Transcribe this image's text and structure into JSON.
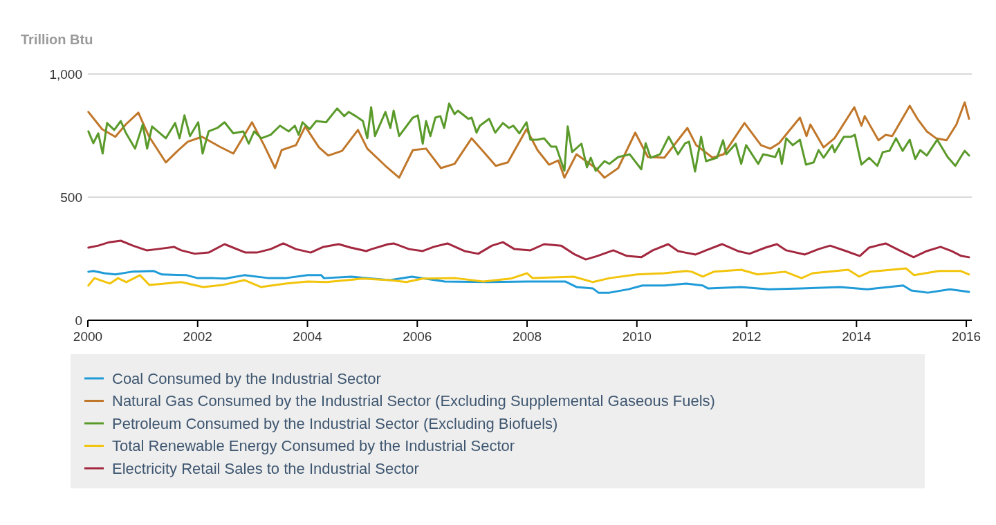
{
  "chart_data": {
    "type": "line",
    "ylabel": "Trillion Btu",
    "xlim": [
      2000,
      2016.1
    ],
    "xticks": [
      2000,
      2002,
      2004,
      2006,
      2008,
      2010,
      2012,
      2014,
      2016
    ],
    "ylim": [
      0,
      1000
    ],
    "yticks": [
      0,
      500,
      {
        "value": 1000,
        "label": "1,000"
      }
    ],
    "grid": "y",
    "legend": "bottom",
    "marker": "none",
    "line_style": "solid",
    "series": [
      {
        "name": "Coal Consumed by the Industrial Sector",
        "color": "#1f9bd7",
        "x": [
          2000.01,
          2000.1,
          2000.3,
          2000.5,
          2000.8,
          2001.2,
          2001.35,
          2001.8,
          2002,
          2002.3,
          2002.5,
          2002.85,
          2003.3,
          2003.6,
          2004,
          2004.25,
          2004.3,
          2004.8,
          2005.1,
          2005.5,
          2005.9,
          2006.5,
          2007.3,
          2008,
          2008.7,
          2008.9,
          2009.2,
          2009.3,
          2009.5,
          2009.85,
          2010.1,
          2010.5,
          2010.9,
          2011.2,
          2011.3,
          2011.9,
          2012.4,
          2013,
          2013.7,
          2014.2,
          2014.85,
          2015,
          2015.3,
          2015.7,
          2016.05
        ],
        "values": [
          197,
          200,
          191,
          186,
          197,
          200,
          186,
          183,
          171,
          171,
          169,
          183,
          171,
          171,
          183,
          183,
          171,
          177,
          171,
          163,
          177,
          157,
          155,
          157,
          157,
          135,
          129,
          112,
          112,
          126,
          141,
          141,
          149,
          141,
          129,
          135,
          126,
          129,
          135,
          126,
          141,
          121,
          112,
          126,
          115
        ]
      },
      {
        "name": "Natural Gas Consumed by the Industrial Sector (Excluding Supplemental Gaseous Fuels)",
        "color": "#c0772a",
        "x": [
          2000.01,
          2000.26,
          2000.5,
          2000.69,
          2000.92,
          2001.11,
          2001.42,
          2001.65,
          2001.82,
          2002.08,
          2002.4,
          2002.65,
          2002.99,
          2003.21,
          2003.41,
          2003.53,
          2003.79,
          2003.96,
          2004.21,
          2004.38,
          2004.63,
          2004.92,
          2005.09,
          2005.42,
          2005.67,
          2005.92,
          2006.16,
          2006.43,
          2006.68,
          2006.99,
          2007.18,
          2007.43,
          2007.65,
          2007.99,
          2008.19,
          2008.4,
          2008.57,
          2008.68,
          2008.9,
          2009.25,
          2009.41,
          2009.66,
          2009.97,
          2010.2,
          2010.5,
          2010.92,
          2011.08,
          2011.38,
          2011.58,
          2011.96,
          2012.26,
          2012.43,
          2012.59,
          2012.97,
          2013.09,
          2013.16,
          2013.4,
          2013.6,
          2013.96,
          2014.09,
          2014.15,
          2014.4,
          2014.53,
          2014.65,
          2014.97,
          2015.11,
          2015.28,
          2015.45,
          2015.64,
          2015.82,
          2015.97,
          2016.05
        ],
        "values": [
          846,
          776,
          745,
          795,
          843,
          748,
          641,
          691,
          725,
          745,
          705,
          677,
          804,
          711,
          618,
          691,
          711,
          787,
          702,
          669,
          688,
          773,
          697,
          627,
          579,
          691,
          697,
          618,
          635,
          739,
          691,
          627,
          641,
          776,
          691,
          632,
          649,
          579,
          674,
          618,
          579,
          618,
          762,
          663,
          660,
          781,
          711,
          660,
          674,
          801,
          711,
          697,
          719,
          823,
          748,
          795,
          702,
          739,
          865,
          790,
          829,
          731,
          753,
          748,
          871,
          818,
          767,
          739,
          731,
          795,
          885,
          818
        ]
      },
      {
        "name": "Petroleum Consumed by the Industrial Sector (Excluding Biofuels)",
        "color": "#5a9a2a",
        "x": [
          2000.01,
          2000.1,
          2000.19,
          2000.27,
          2000.35,
          2000.48,
          2000.6,
          2000.69,
          2000.86,
          2001,
          2001.08,
          2001.17,
          2001.42,
          2001.59,
          2001.67,
          2001.76,
          2001.86,
          2002.01,
          2002.09,
          2002.2,
          2002.36,
          2002.49,
          2002.65,
          2002.83,
          2002.93,
          2003.03,
          2003.16,
          2003.33,
          2003.5,
          2003.66,
          2003.77,
          2003.84,
          2003.91,
          2004.04,
          2004.16,
          2004.34,
          2004.54,
          2004.67,
          2004.75,
          2004.88,
          2005.01,
          2005.09,
          2005.16,
          2005.23,
          2005.42,
          2005.51,
          2005.57,
          2005.67,
          2005.92,
          2006.01,
          2006.1,
          2006.16,
          2006.24,
          2006.33,
          2006.42,
          2006.49,
          2006.58,
          2006.68,
          2006.74,
          2006.93,
          2006.99,
          2007.08,
          2007.14,
          2007.31,
          2007.42,
          2007.56,
          2007.67,
          2007.75,
          2007.86,
          2007.99,
          2008.06,
          2008.19,
          2008.31,
          2008.44,
          2008.53,
          2008.68,
          2008.74,
          2008.82,
          2008.99,
          2009.09,
          2009.16,
          2009.25,
          2009.41,
          2009.5,
          2009.66,
          2009.79,
          2009.87,
          2010.08,
          2010.16,
          2010.25,
          2010.42,
          2010.58,
          2010.75,
          2010.88,
          2010.95,
          2011.06,
          2011.17,
          2011.26,
          2011.46,
          2011.57,
          2011.63,
          2011.8,
          2011.9,
          2011.99,
          2012.21,
          2012.3,
          2012.52,
          2012.59,
          2012.64,
          2012.72,
          2012.84,
          2012.97,
          2013.08,
          2013.22,
          2013.31,
          2013.4,
          2013.56,
          2013.6,
          2013.77,
          2013.9,
          2013.97,
          2014.09,
          2014.23,
          2014.38,
          2014.48,
          2014.6,
          2014.72,
          2014.84,
          2014.97,
          2015.07,
          2015.16,
          2015.28,
          2015.47,
          2015.66,
          2015.8,
          2015.97,
          2016.05
        ],
        "values": [
          767,
          719,
          759,
          677,
          801,
          773,
          809,
          762,
          697,
          795,
          697,
          787,
          739,
          801,
          739,
          832,
          748,
          804,
          677,
          767,
          781,
          804,
          759,
          767,
          717,
          767,
          739,
          753,
          790,
          767,
          790,
          753,
          804,
          776,
          809,
          804,
          860,
          829,
          846,
          829,
          809,
          739,
          865,
          748,
          846,
          781,
          851,
          748,
          823,
          832,
          717,
          809,
          748,
          823,
          829,
          781,
          880,
          837,
          851,
          818,
          823,
          762,
          790,
          818,
          762,
          801,
          781,
          790,
          759,
          804,
          733,
          733,
          739,
          705,
          705,
          607,
          787,
          683,
          717,
          621,
          660,
          607,
          646,
          635,
          663,
          669,
          674,
          613,
          719,
          660,
          674,
          745,
          674,
          719,
          725,
          604,
          745,
          646,
          660,
          731,
          674,
          717,
          635,
          711,
          635,
          674,
          663,
          697,
          635,
          739,
          711,
          733,
          632,
          641,
          691,
          660,
          711,
          683,
          745,
          745,
          753,
          632,
          660,
          627,
          683,
          688,
          739,
          688,
          733,
          655,
          691,
          669,
          733,
          663,
          627,
          688,
          669
        ]
      },
      {
        "name": "Total Renewable Energy Consumed by the Industrial Sector",
        "color": "#f2c40c",
        "x": [
          2000.01,
          2000.12,
          2000.4,
          2000.55,
          2000.7,
          2000.95,
          2001.12,
          2001.4,
          2001.7,
          2002.1,
          2002.45,
          2002.85,
          2003.15,
          2003.6,
          2004,
          2004.35,
          2005,
          2005.5,
          2005.8,
          2006.1,
          2006.7,
          2007.2,
          2007.7,
          2008,
          2008.1,
          2008.85,
          2009.2,
          2009.5,
          2010,
          2010.5,
          2010.9,
          2011,
          2011.2,
          2011.4,
          2011.9,
          2012.2,
          2012.7,
          2013,
          2013.2,
          2013.85,
          2014.05,
          2014.25,
          2014.9,
          2015.05,
          2015.5,
          2015.9,
          2016.05
        ],
        "values": [
          141,
          171,
          149,
          171,
          155,
          183,
          143,
          149,
          155,
          135,
          143,
          163,
          135,
          149,
          157,
          155,
          169,
          163,
          155,
          169,
          171,
          157,
          169,
          191,
          171,
          177,
          155,
          171,
          186,
          191,
          200,
          197,
          177,
          197,
          205,
          186,
          197,
          171,
          191,
          205,
          177,
          197,
          211,
          183,
          200,
          200,
          186
        ]
      },
      {
        "name": "Electricity Retail Sales to the Industrial Sector",
        "color": "#a3283f",
        "x": [
          2000.01,
          2000.19,
          2000.39,
          2000.6,
          2000.82,
          2001.07,
          2001.27,
          2001.57,
          2001.7,
          2001.95,
          2002.2,
          2002.49,
          2002.87,
          2003.08,
          2003.33,
          2003.56,
          2003.79,
          2004.06,
          2004.29,
          2004.57,
          2004.79,
          2005.07,
          2005.17,
          2005.47,
          2005.57,
          2005.85,
          2006.1,
          2006.3,
          2006.55,
          2006.86,
          2007.11,
          2007.36,
          2007.56,
          2007.77,
          2008.06,
          2008.31,
          2008.62,
          2008.87,
          2009.07,
          2009.28,
          2009.57,
          2009.82,
          2010.08,
          2010.29,
          2010.57,
          2010.75,
          2010.88,
          2011.07,
          2011.26,
          2011.55,
          2011.84,
          2012.05,
          2012.34,
          2012.55,
          2012.72,
          2013.06,
          2013.31,
          2013.52,
          2013.81,
          2014.06,
          2014.23,
          2014.53,
          2014.78,
          2015.04,
          2015.28,
          2015.53,
          2015.73,
          2015.91,
          2016.05
        ],
        "values": [
          295,
          303,
          317,
          323,
          303,
          284,
          289,
          298,
          284,
          270,
          275,
          309,
          275,
          275,
          289,
          312,
          289,
          275,
          298,
          309,
          295,
          281,
          289,
          309,
          312,
          289,
          281,
          298,
          312,
          281,
          270,
          303,
          317,
          289,
          284,
          309,
          303,
          267,
          247,
          261,
          284,
          261,
          256,
          284,
          309,
          281,
          275,
          267,
          284,
          309,
          281,
          270,
          295,
          309,
          284,
          267,
          289,
          303,
          281,
          261,
          295,
          312,
          284,
          256,
          281,
          298,
          281,
          261,
          256
        ]
      }
    ]
  }
}
